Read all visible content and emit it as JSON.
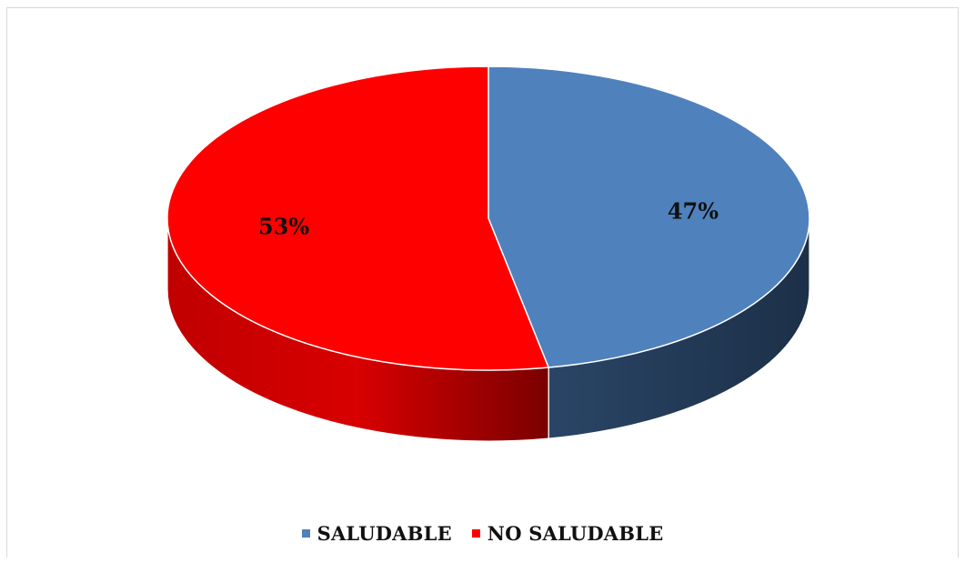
{
  "chart_data": {
    "type": "pie",
    "title": "",
    "categories": [
      "SALUDABLE",
      "NO SALUDABLE"
    ],
    "values": [
      47,
      53
    ],
    "labels": [
      "47%",
      "53%"
    ],
    "colors": [
      "#4f81bd",
      "#ff0000"
    ],
    "legend_position": "bottom",
    "style": "3d"
  },
  "legend": {
    "items": [
      {
        "label": "SALUDABLE",
        "color": "#4f81bd"
      },
      {
        "label": "NO SALUDABLE",
        "color": "#ff0000"
      }
    ]
  }
}
